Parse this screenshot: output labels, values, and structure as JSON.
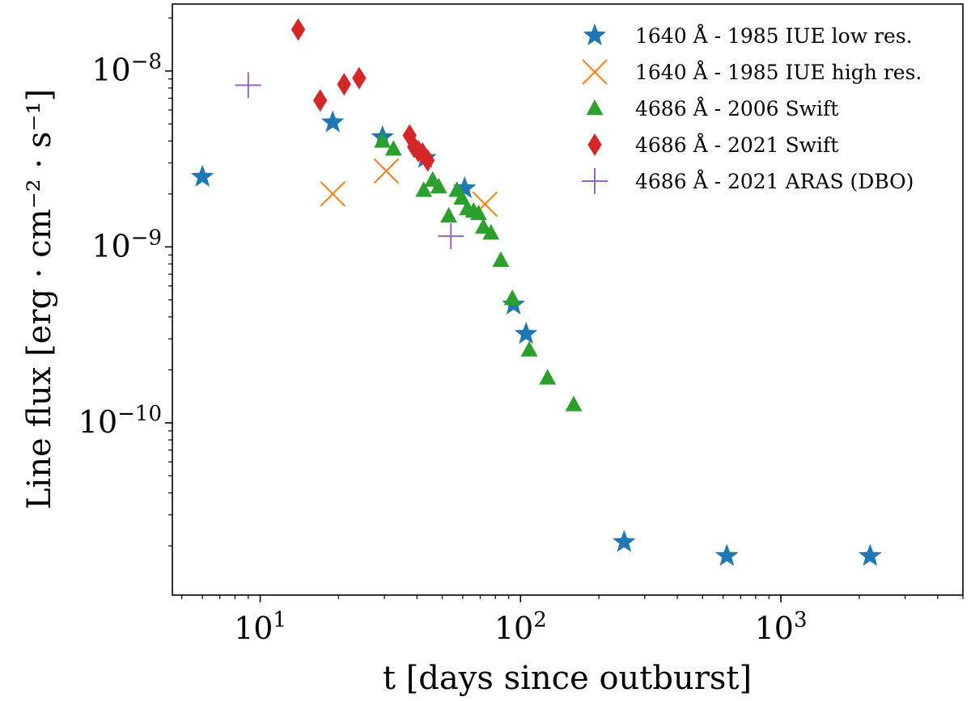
{
  "chart_data": {
    "type": "scatter",
    "title": "",
    "xlabel": "t [days since outburst]",
    "ylabel": "Line flux [erg · cm⁻² · s⁻¹]",
    "xscale": "log",
    "yscale": "log",
    "xlim": [
      4.6,
      5000
    ],
    "ylim": [
      1.05e-11,
      2.4e-08
    ],
    "grid": false,
    "legend_position": "top-right",
    "x_ticks": [
      {
        "value": 10,
        "base": "10",
        "exp": "1"
      },
      {
        "value": 100,
        "base": "10",
        "exp": "2"
      },
      {
        "value": 1000,
        "base": "10",
        "exp": "3"
      }
    ],
    "y_ticks": [
      {
        "value": 1e-08,
        "base": "10",
        "exp": "−8"
      },
      {
        "value": 1e-09,
        "base": "10",
        "exp": "−9"
      },
      {
        "value": 1e-10,
        "base": "10",
        "exp": "−10"
      }
    ],
    "series": [
      {
        "name": "1640 Å - 1985 IUE low res.",
        "marker": "star",
        "color": "#1f77b4",
        "points": [
          [
            6,
            2.5e-09
          ],
          [
            19,
            5.1e-09
          ],
          [
            29.5,
            4.2e-09
          ],
          [
            43,
            3.2e-09
          ],
          [
            61,
            2.15e-09
          ],
          [
            94,
            4.7e-10
          ],
          [
            105,
            3.2e-10
          ],
          [
            250,
            2.1e-11
          ],
          [
            620,
            1.75e-11
          ],
          [
            2200,
            1.75e-11
          ]
        ]
      },
      {
        "name": "1640 Å - 1985 IUE high res.",
        "marker": "x",
        "color": "#ff7f0e",
        "points": [
          [
            19,
            2e-09
          ],
          [
            30.5,
            2.7e-09
          ],
          [
            73,
            1.75e-09
          ]
        ]
      },
      {
        "name": "4686 Å - 2006 Swift",
        "marker": "triangle",
        "color": "#2ca02c",
        "points": [
          [
            29.5,
            4e-09
          ],
          [
            32.5,
            3.6e-09
          ],
          [
            42.5,
            2.1e-09
          ],
          [
            46,
            2.4e-09
          ],
          [
            48.5,
            2.2e-09
          ],
          [
            53,
            1.5e-09
          ],
          [
            57,
            2.1e-09
          ],
          [
            59.5,
            1.9e-09
          ],
          [
            62.5,
            1.65e-09
          ],
          [
            66,
            1.6e-09
          ],
          [
            69,
            1.55e-09
          ],
          [
            72,
            1.3e-09
          ],
          [
            77,
            1.2e-09
          ],
          [
            84,
            8.4e-10
          ],
          [
            93,
            5.1e-10
          ],
          [
            108,
            2.6e-10
          ],
          [
            127,
            1.8e-10
          ],
          [
            160,
            1.27e-10
          ]
        ]
      },
      {
        "name": "4686 Å - 2021 Swift",
        "marker": "diamond",
        "color": "#d62728",
        "points": [
          [
            14,
            1.72e-08
          ],
          [
            17,
            6.8e-09
          ],
          [
            21,
            8.4e-09
          ],
          [
            24,
            9.1e-09
          ],
          [
            37.5,
            4.3e-09
          ],
          [
            39,
            3.7e-09
          ],
          [
            40.5,
            3.5e-09
          ],
          [
            42,
            3.4e-09
          ],
          [
            44,
            3.1e-09
          ]
        ]
      },
      {
        "name": "4686 Å - 2021 ARAS (DBO)",
        "marker": "plus",
        "color": "#9467bd",
        "points": [
          [
            9,
            8.3e-09
          ],
          [
            54,
            1.15e-09
          ]
        ]
      }
    ]
  }
}
